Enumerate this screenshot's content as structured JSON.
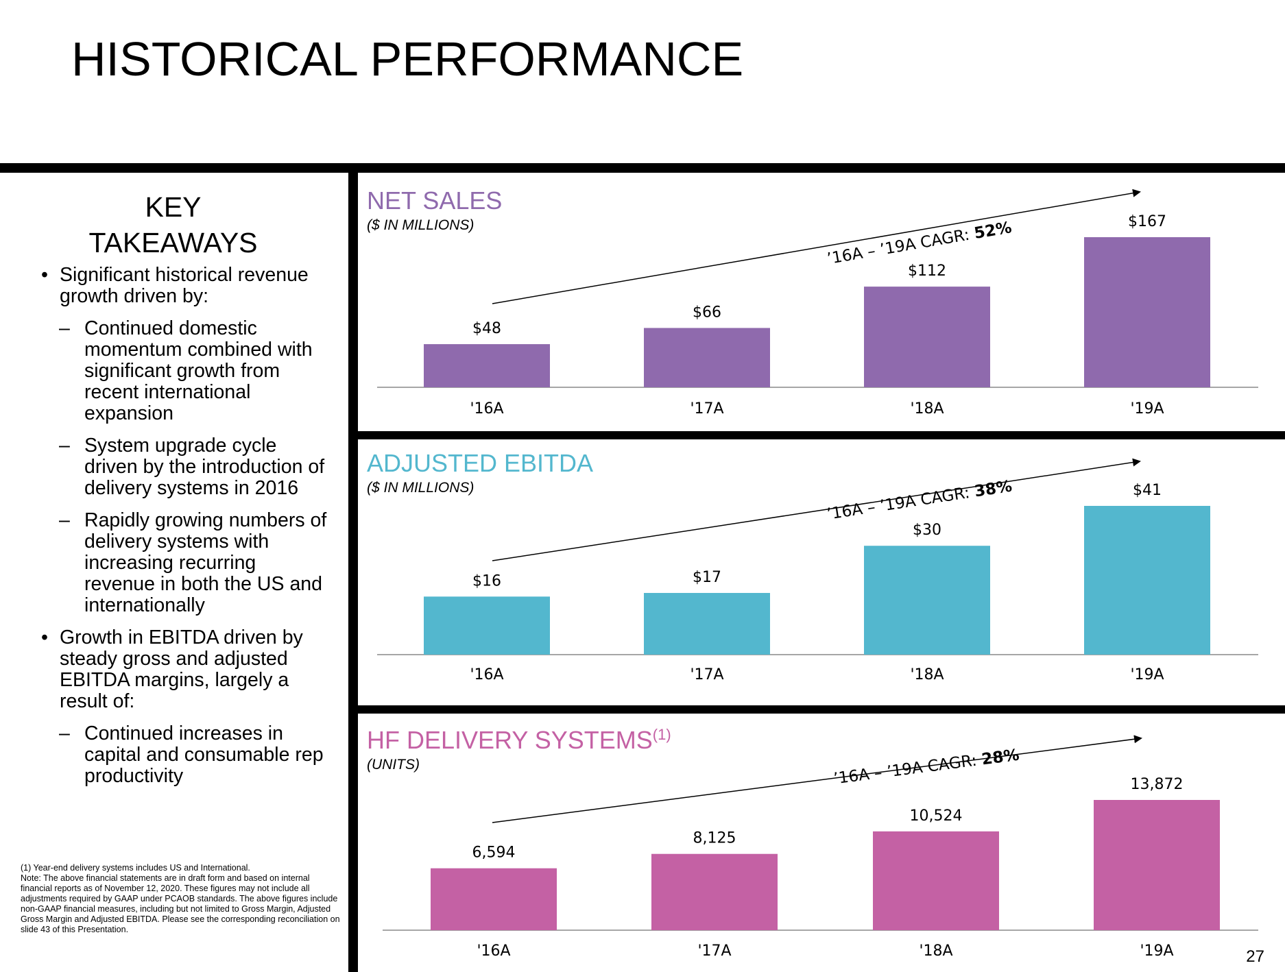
{
  "page": {
    "title": "HISTORICAL PERFORMANCE",
    "page_number": "27"
  },
  "sidebar": {
    "heading_line1": "KEY",
    "heading_line2": "TAKEAWAYS",
    "bullet_marker": "•",
    "dash_marker": "–",
    "bullets": [
      {
        "text": "Significant historical revenue growth driven by:",
        "subs": [
          "Continued domestic momentum combined with significant growth from recent international expansion",
          "System upgrade cycle driven by the introduction of delivery systems in 2016",
          "Rapidly growing numbers of delivery systems with increasing recurring revenue in both the US and internationally"
        ]
      },
      {
        "text": "Growth in EBITDA driven by steady gross and adjusted EBITDA margins, largely a result of:",
        "subs": [
          "Continued increases in capital and consumable rep productivity"
        ]
      }
    ],
    "footnote_1": "(1) Year-end delivery systems includes US and International.",
    "footnote_2": "Note: The above financial statements are in draft form and based on internal financial reports as of November 12, 2020. These figures may not include all adjustments required by GAAP under PCAOB standards. The above figures include non-GAAP financial measures, including but not limited to Gross Margin, Adjusted Gross Margin and Adjusted EBITDA.  Please see the corresponding reconciliation on slide 43 of this Presentation."
  },
  "chart_data": [
    {
      "type": "bar",
      "title": "NET SALES",
      "subtitle": "($ IN MILLIONS)",
      "color": "#8f6aad",
      "categories": [
        "'16A",
        "'17A",
        "'18A",
        "'19A"
      ],
      "values": [
        48,
        66,
        112,
        167
      ],
      "value_labels": [
        "$48",
        "$66",
        "$112",
        "$167"
      ],
      "cagr_label": "’16A – ’19A CAGR: ",
      "cagr_value": "52%",
      "ylim": [
        0,
        167
      ]
    },
    {
      "type": "bar",
      "title": "ADJUSTED EBITDA",
      "subtitle": "($ IN MILLIONS)",
      "color": "#53b7ce",
      "categories": [
        "'16A",
        "'17A",
        "'18A",
        "'19A"
      ],
      "values": [
        16,
        17,
        30,
        41
      ],
      "value_labels": [
        "$16",
        "$17",
        "$30",
        "$41"
      ],
      "cagr_label": "’16A – ’19A CAGR: ",
      "cagr_value": "38%",
      "ylim": [
        0,
        41
      ]
    },
    {
      "type": "bar",
      "title": "HF DELIVERY SYSTEMS",
      "title_superscript": "(1)",
      "subtitle": "(UNITS)",
      "color": "#c461a4",
      "categories": [
        "'16A",
        "'17A",
        "'18A",
        "'19A"
      ],
      "values": [
        6594,
        8125,
        10524,
        13872
      ],
      "value_labels": [
        "6,594",
        "8,125",
        "10,524",
        "13,872"
      ],
      "cagr_label": "’16A – ’19A CAGR: ",
      "cagr_value": "28%",
      "ylim": [
        0,
        13872
      ]
    }
  ]
}
